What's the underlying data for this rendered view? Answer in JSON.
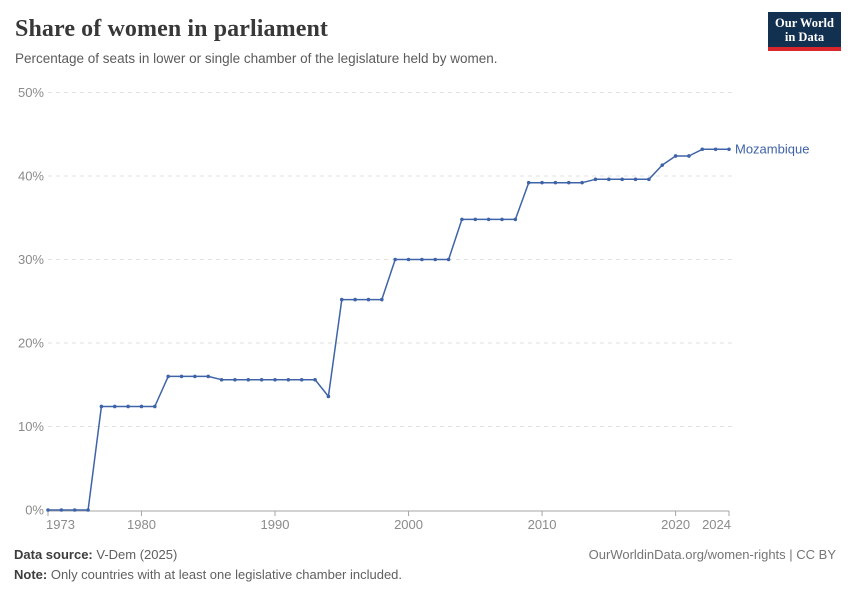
{
  "header": {
    "title": "Share of women in parliament",
    "subtitle": "Percentage of seats in lower or single chamber of the legislature held by women."
  },
  "logo": {
    "line1": "Our World",
    "line2": "in Data"
  },
  "chart_data": {
    "type": "line",
    "title": "Share of women in parliament",
    "entity_label": "Mozambique",
    "x": [
      1973,
      1974,
      1975,
      1976,
      1977,
      1978,
      1979,
      1980,
      1981,
      1982,
      1983,
      1984,
      1985,
      1986,
      1987,
      1988,
      1989,
      1990,
      1991,
      1992,
      1993,
      1994,
      1995,
      1996,
      1997,
      1998,
      1999,
      2000,
      2001,
      2002,
      2003,
      2004,
      2005,
      2006,
      2007,
      2008,
      2009,
      2010,
      2011,
      2012,
      2013,
      2014,
      2015,
      2016,
      2017,
      2018,
      2019,
      2020,
      2021,
      2022,
      2023,
      2024
    ],
    "series": [
      {
        "name": "Mozambique",
        "color": "#3F63A8",
        "values": [
          0,
          0,
          0,
          0,
          12.4,
          12.4,
          12.4,
          12.4,
          12.4,
          16,
          16,
          16,
          16,
          15.6,
          15.6,
          15.6,
          15.6,
          15.6,
          15.6,
          15.6,
          15.6,
          13.6,
          25.2,
          25.2,
          25.2,
          25.2,
          30,
          30,
          30,
          30,
          30,
          34.8,
          34.8,
          34.8,
          34.8,
          34.8,
          39.2,
          39.2,
          39.2,
          39.2,
          39.2,
          39.6,
          39.6,
          39.6,
          39.6,
          39.6,
          41.3,
          42.4,
          42.4,
          43.2,
          43.2,
          43.2
        ]
      }
    ],
    "xticks": [
      1973,
      1980,
      1990,
      2000,
      2010,
      2020,
      2024
    ],
    "yticks": [
      0,
      10,
      20,
      30,
      40,
      50
    ],
    "ytick_suffix": "%",
    "xlim": [
      1973,
      2024
    ],
    "ylim": [
      0,
      50
    ],
    "grid": "horizontal-dashed",
    "legend_position": "end-of-line"
  },
  "footer": {
    "source_label": "Data source:",
    "source_value": "V-Dem (2025)",
    "note_label": "Note:",
    "note_value": "Only countries with at least one legislative chamber included.",
    "rights": "OurWorldinData.org/women-rights | CC BY"
  },
  "colors": {
    "line": "#3F63A8",
    "tick_label": "#8b8b8b",
    "grid": "#e2e2e2",
    "axis": "#a5a5a5"
  }
}
